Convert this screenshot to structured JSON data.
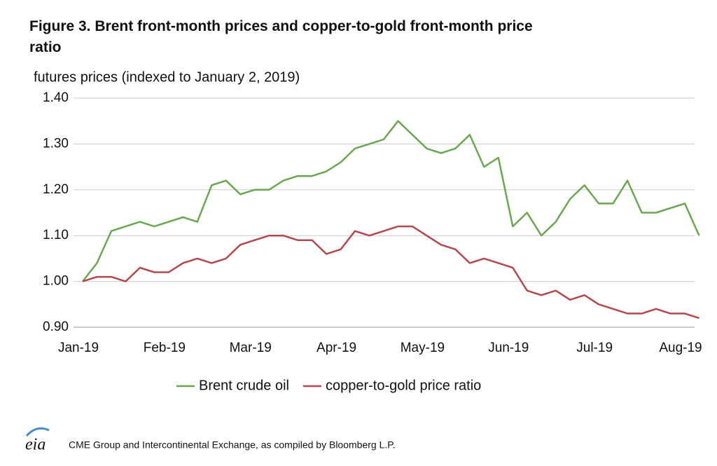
{
  "chart_data": {
    "type": "line",
    "title": "Figure 3. Brent front-month prices and copper-to-gold front-month price ratio",
    "subtitle": "futures prices (indexed to January 2, 2019)",
    "categories": [
      "Jan-19",
      null,
      null,
      null,
      null,
      null,
      "Feb-19",
      null,
      null,
      null,
      null,
      null,
      "Mar-19",
      null,
      null,
      null,
      null,
      null,
      "Apr-19",
      null,
      null,
      null,
      null,
      null,
      "May-19",
      null,
      null,
      null,
      null,
      null,
      "Jun-19",
      null,
      null,
      null,
      null,
      null,
      "Jul-19",
      null,
      null,
      null,
      null,
      null,
      "Aug-19",
      null
    ],
    "series": [
      {
        "name": "Brent crude oil",
        "color": "#6aa84f",
        "values": [
          1.0,
          1.04,
          1.11,
          1.12,
          1.13,
          1.12,
          1.13,
          1.14,
          1.13,
          1.21,
          1.22,
          1.19,
          1.2,
          1.2,
          1.22,
          1.23,
          1.23,
          1.24,
          1.26,
          1.29,
          1.3,
          1.31,
          1.35,
          1.32,
          1.29,
          1.28,
          1.29,
          1.32,
          1.25,
          1.27,
          1.12,
          1.15,
          1.1,
          1.13,
          1.18,
          1.21,
          1.17,
          1.17,
          1.22,
          1.15,
          1.15,
          1.16,
          1.17,
          1.1
        ]
      },
      {
        "name": "copper-to-gold price ratio",
        "color": "#b5474d",
        "values": [
          1.0,
          1.01,
          1.01,
          1.0,
          1.03,
          1.02,
          1.02,
          1.04,
          1.05,
          1.04,
          1.05,
          1.08,
          1.09,
          1.1,
          1.1,
          1.09,
          1.09,
          1.06,
          1.07,
          1.11,
          1.1,
          1.11,
          1.12,
          1.12,
          1.1,
          1.08,
          1.07,
          1.04,
          1.05,
          1.04,
          1.03,
          0.98,
          0.97,
          0.98,
          0.96,
          0.97,
          0.95,
          0.94,
          0.93,
          0.93,
          0.94,
          0.93,
          0.93,
          0.92
        ]
      }
    ],
    "ylim": [
      0.9,
      1.4
    ],
    "yticks": [
      {
        "value": 0.9,
        "label": "0.90"
      },
      {
        "value": 1.0,
        "label": "1.00"
      },
      {
        "value": 1.1,
        "label": "1.10"
      },
      {
        "value": 1.2,
        "label": "1.20"
      },
      {
        "value": 1.3,
        "label": "1.30"
      },
      {
        "value": 1.4,
        "label": "1.40"
      }
    ],
    "grid": true,
    "legend": "bottom",
    "source": "CME Group and Intercontinental Exchange, as compiled by Bloomberg L.P.",
    "logo": "eia"
  }
}
